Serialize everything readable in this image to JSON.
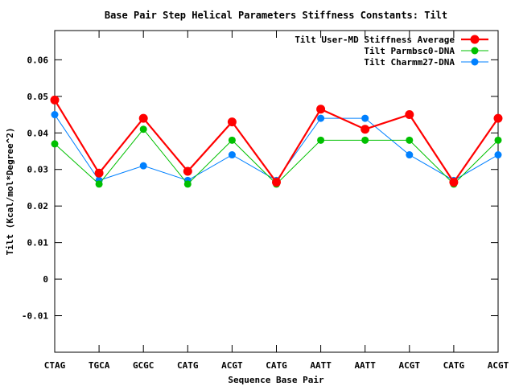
{
  "chart_data": {
    "type": "line",
    "title": "Base Pair Step Helical Parameters Stiffness Constants: Tilt",
    "xlabel": "Sequence Base Pair",
    "ylabel": "Tilt (Kcal/mol*Degree^2)",
    "ylim": [
      -0.02,
      0.068
    ],
    "yticks": [
      -0.01,
      0,
      0.01,
      0.02,
      0.03,
      0.04,
      0.05,
      0.06
    ],
    "ytick_labels": [
      "-0.01",
      "0",
      "0.01",
      "0.02",
      "0.03",
      "0.04",
      "0.05",
      "0.06"
    ],
    "categories": [
      "CTAG",
      "TGCA",
      "GCGC",
      "CATG",
      "ACGT",
      "CATG",
      "AATT",
      "AATT",
      "ACGT",
      "CATG",
      "ACGT"
    ],
    "grid": false,
    "legend_position": "top-right",
    "series": [
      {
        "name": "Tilt User-MD Stiffness Average",
        "color": "#ff0000",
        "values": [
          0.049,
          0.029,
          0.044,
          0.0295,
          0.043,
          0.0265,
          0.0465,
          0.041,
          0.045,
          0.0265,
          0.044
        ]
      },
      {
        "name": "Tilt Parmbsc0-DNA",
        "color": "#00c000",
        "values": [
          0.037,
          0.026,
          0.041,
          0.026,
          0.038,
          0.026,
          0.038,
          0.038,
          0.038,
          0.026,
          0.038
        ]
      },
      {
        "name": "Tilt Charmm27-DNA",
        "color": "#0080ff",
        "values": [
          0.045,
          0.027,
          0.031,
          0.027,
          0.034,
          0.027,
          0.044,
          0.044,
          0.034,
          0.027,
          0.034
        ]
      }
    ]
  }
}
